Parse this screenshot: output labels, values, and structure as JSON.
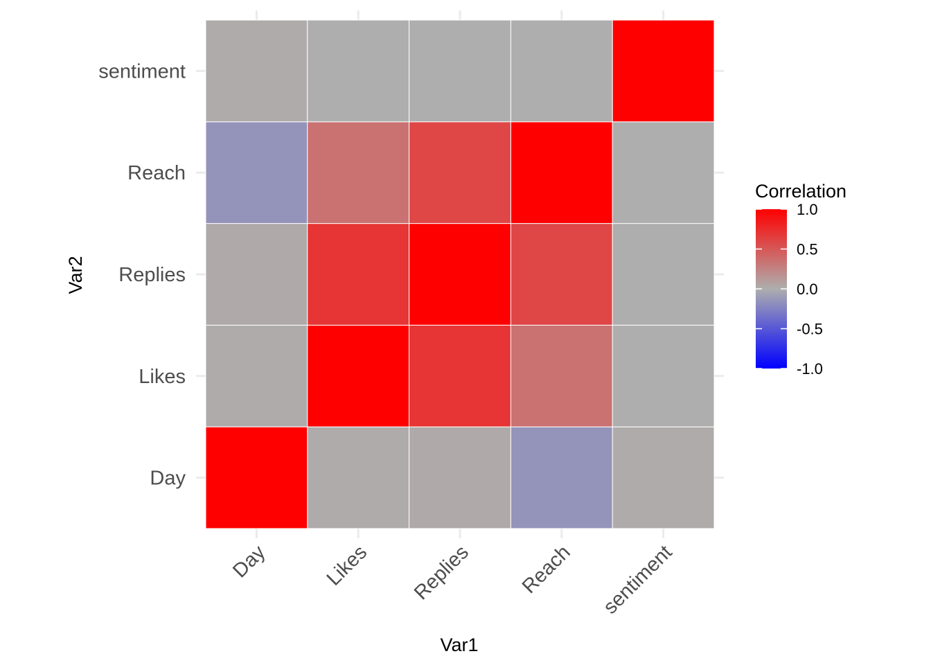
{
  "chart_data": {
    "type": "heatmap",
    "x_categories": [
      "Day",
      "Likes",
      "Replies",
      "Reach",
      "sentiment"
    ],
    "y_categories": [
      "Day",
      "Likes",
      "Replies",
      "Reach",
      "sentiment"
    ],
    "xlabel": "Var1",
    "ylabel": "Var2",
    "values": [
      [
        1.0,
        0.02,
        0.03,
        -0.15,
        0.02
      ],
      [
        0.02,
        1.0,
        0.7,
        0.35,
        0.0
      ],
      [
        0.03,
        0.7,
        1.0,
        0.6,
        0.0
      ],
      [
        -0.15,
        0.35,
        0.6,
        1.0,
        0.0
      ],
      [
        0.02,
        0.0,
        0.0,
        0.0,
        1.0
      ]
    ],
    "legend": {
      "title": "Correlation",
      "ticks": [
        1.0,
        0.5,
        0.0,
        -0.5,
        -1.0
      ],
      "tick_labels": [
        "1.0",
        "0.5",
        "0.0",
        "-0.5",
        "-1.0"
      ],
      "range": [
        -1,
        1
      ],
      "placement": "right"
    },
    "colors": {
      "low": "#0000ff",
      "mid": "#aeaeae",
      "high": "#ff0000",
      "grid": "#ebebeb",
      "tile_border": "#ffffff"
    },
    "grid": true
  }
}
